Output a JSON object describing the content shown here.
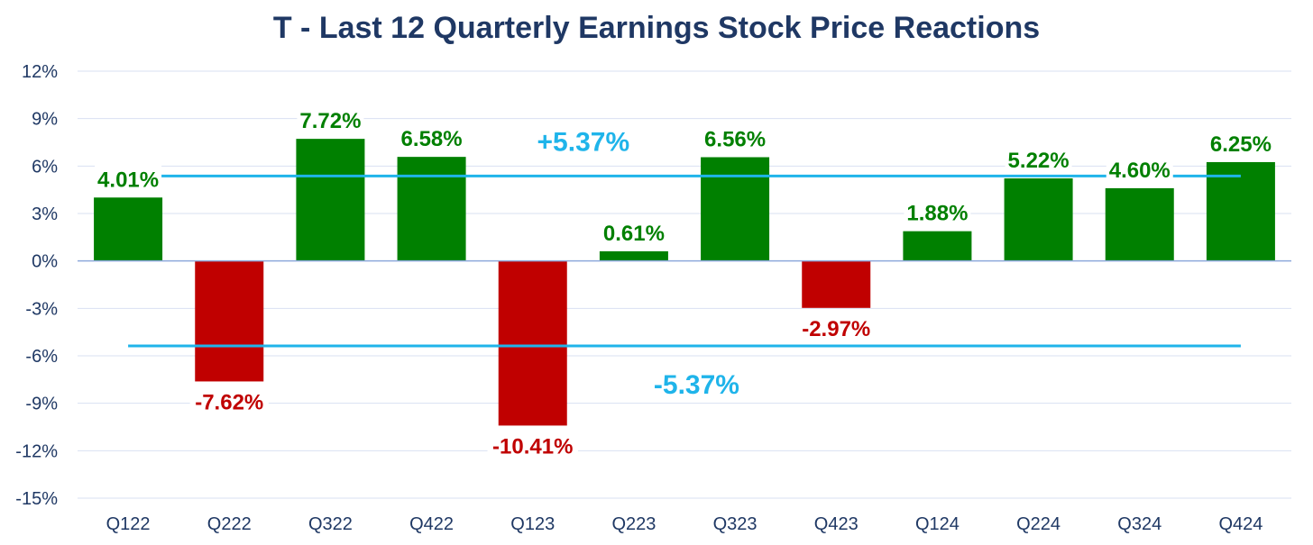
{
  "chart_data": {
    "type": "bar",
    "title": "T - Last 12 Quarterly Earnings Stock Price Reactions",
    "xlabel": "",
    "ylabel": "",
    "ylim": [
      -15,
      12
    ],
    "yticks": [
      12,
      9,
      6,
      3,
      0,
      -3,
      -6,
      -9,
      -12,
      -15
    ],
    "ytick_labels": [
      "12%",
      "9%",
      "6%",
      "3%",
      "0%",
      "-3%",
      "-6%",
      "-9%",
      "-12%",
      "-15%"
    ],
    "grid": true,
    "categories": [
      "Q122",
      "Q222",
      "Q322",
      "Q422",
      "Q123",
      "Q223",
      "Q323",
      "Q423",
      "Q124",
      "Q224",
      "Q324",
      "Q424"
    ],
    "values": [
      4.01,
      -7.62,
      7.72,
      6.58,
      -10.41,
      0.61,
      6.56,
      -2.97,
      1.88,
      5.22,
      4.6,
      6.25
    ],
    "data_labels": [
      "4.01%",
      "-7.62%",
      "7.72%",
      "6.58%",
      "-10.41%",
      "0.61%",
      "6.56%",
      "-2.97%",
      "1.88%",
      "5.22%",
      "4.60%",
      "6.25%"
    ],
    "reference_lines": [
      {
        "value": 5.37,
        "label": "+5.37%"
      },
      {
        "value": -5.37,
        "label": "-5.37%"
      }
    ],
    "colors": {
      "positive": "#008000",
      "negative": "#c00000",
      "reference": "#1fb4ea",
      "title": "#1f3864",
      "axis_text": "#1f3864",
      "grid": "#d9e1f2"
    }
  }
}
